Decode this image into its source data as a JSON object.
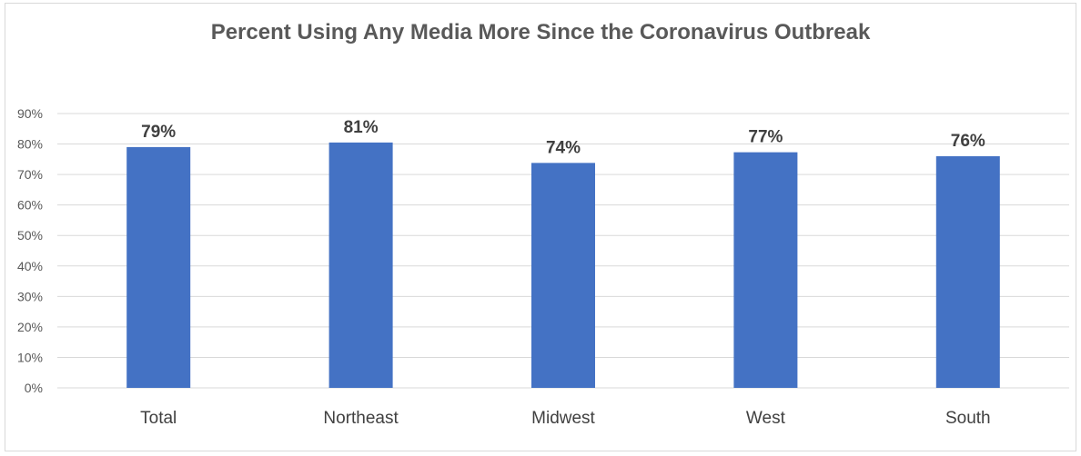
{
  "chart_data": {
    "type": "bar",
    "title": "Percent Using Any Media More Since the Coronavirus Outbreak",
    "categories": [
      "Total",
      "Northeast",
      "Midwest",
      "West",
      "South"
    ],
    "values": [
      79,
      80.5,
      73.8,
      77.3,
      76
    ],
    "data_labels": [
      "79%",
      "81%",
      "74%",
      "77%",
      "76%"
    ],
    "ylim": [
      0,
      90
    ],
    "yticks": [
      0,
      10,
      20,
      30,
      40,
      50,
      60,
      70,
      80,
      90
    ],
    "ytick_labels": [
      "0%",
      "10%",
      "20%",
      "30%",
      "40%",
      "50%",
      "60%",
      "70%",
      "80%",
      "90%"
    ],
    "grid": true,
    "legend": "none",
    "bar_color": "#4472C4",
    "grid_color": "#d9d9d9"
  }
}
